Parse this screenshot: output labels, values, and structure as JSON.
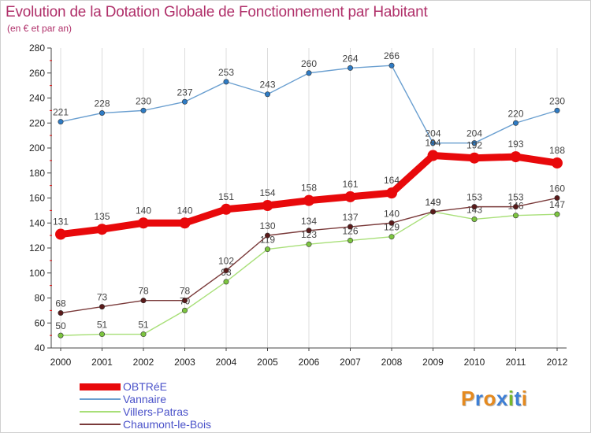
{
  "header": {
    "title": "Evolution de la Dotation Globale de Fonctionnement par Habitant",
    "subtitle": "(en € et par an)"
  },
  "chart_data": {
    "type": "line",
    "title": "Evolution de la Dotation Globale de Fonctionnement par Habitant",
    "subtitle": "(en € et par an)",
    "xlabel": "",
    "ylabel": "",
    "x": [
      2000,
      2001,
      2002,
      2003,
      2004,
      2005,
      2006,
      2007,
      2008,
      2009,
      2010,
      2011,
      2012
    ],
    "x_tick_labels": [
      "2000",
      "2001",
      "2002",
      "2003",
      "2004",
      "2005",
      "2006",
      "2007",
      "2008",
      "2009",
      "2010",
      "2011",
      "2012"
    ],
    "ylim": [
      40,
      280
    ],
    "y_ticks": [
      40,
      60,
      80,
      100,
      120,
      140,
      160,
      180,
      200,
      220,
      240,
      260,
      280
    ],
    "grid": "vertical",
    "legend_position": "bottom-left",
    "series": [
      {
        "name": "Vannaire",
        "values": [
          221,
          228,
          230,
          237,
          253,
          243,
          260,
          264,
          266,
          204,
          204,
          220,
          230
        ],
        "labels": [
          "221",
          "228",
          "230",
          "237",
          "253",
          "243",
          "260",
          "264",
          "266",
          "204",
          "204",
          "220",
          "230"
        ],
        "color": "#6a9fd0",
        "marker": "#2e7bc4",
        "emphasis": false
      },
      {
        "name": "Villers-Patras",
        "values": [
          50,
          51,
          51,
          70,
          93,
          119,
          123,
          126,
          129,
          149,
          143,
          146,
          147
        ],
        "labels": [
          "50",
          "51",
          "51",
          "70",
          "93",
          "119",
          "123",
          "126",
          "129",
          "149",
          "143",
          "146",
          "147"
        ],
        "color": "#a8df78",
        "marker": "#7cc53f",
        "emphasis": false
      },
      {
        "name": "Chaumont-le-Bois",
        "values": [
          68,
          73,
          78,
          78,
          102,
          130,
          134,
          137,
          140,
          149,
          153,
          153,
          160
        ],
        "labels": [
          "68",
          "73",
          "78",
          "78",
          "102",
          "130",
          "134",
          "137",
          "140",
          "149",
          "153",
          "153",
          "160"
        ],
        "color": "#7a3a3a",
        "marker": "#5a1a1a",
        "emphasis": false
      },
      {
        "name": "OBTRéE",
        "values": [
          131,
          135,
          140,
          140,
          151,
          154,
          158,
          161,
          164,
          194,
          192,
          193,
          188
        ],
        "labels": [
          "131",
          "135",
          "140",
          "140",
          "151",
          "154",
          "158",
          "161",
          "164",
          "194",
          "192",
          "193",
          "188"
        ],
        "color": "#e8090b",
        "marker": "#e8090b",
        "emphasis": true
      }
    ]
  },
  "legend": {
    "items": [
      {
        "label": "OBTRéE",
        "color": "#e8090b"
      },
      {
        "label": "Vannaire",
        "color": "#6a9fd0"
      },
      {
        "label": "Villers-Patras",
        "color": "#a8df78"
      },
      {
        "label": "Chaumont-le-Bois",
        "color": "#7a3a3a"
      }
    ]
  },
  "logo": {
    "text": "Proxiti",
    "letters": [
      {
        "char": "P",
        "color": "#e58a1f"
      },
      {
        "char": "r",
        "color": "#3d7fd6"
      },
      {
        "char": "o",
        "color": "#e58a1f"
      },
      {
        "char": "x",
        "color": "#3d7fd6"
      },
      {
        "char": "i",
        "color": "#77b82a"
      },
      {
        "char": "t",
        "color": "#3d7fd6"
      },
      {
        "char": "i",
        "color": "#e58a1f"
      }
    ]
  }
}
